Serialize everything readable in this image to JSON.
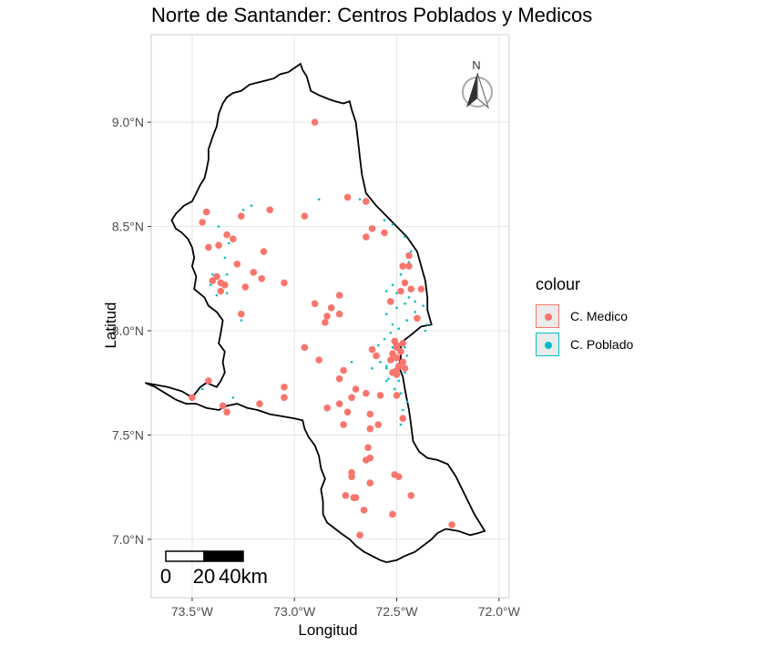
{
  "chart_data": {
    "type": "scatter",
    "title": "Norte de Santander: Centros Poblados y Medicos",
    "xlabel": "Longitud",
    "ylabel": "Latitud",
    "xlim": [
      -73.7,
      -71.95
    ],
    "ylim": [
      6.72,
      9.42
    ],
    "x_ticks": [
      {
        "value": -73.5,
        "label": "73.5°W"
      },
      {
        "value": -73.0,
        "label": "73.0°W"
      },
      {
        "value": -72.5,
        "label": "72.5°W"
      },
      {
        "value": -72.0,
        "label": "72.0°W"
      }
    ],
    "y_ticks": [
      {
        "value": 7.0,
        "label": "7.0°N"
      },
      {
        "value": 7.5,
        "label": "7.5°N"
      },
      {
        "value": 8.0,
        "label": "8.0°N"
      },
      {
        "value": 8.5,
        "label": "8.5°N"
      },
      {
        "value": 9.0,
        "label": "9.0°N"
      }
    ],
    "grid": true,
    "legend": {
      "title": "colour",
      "position": "right",
      "entries": [
        {
          "label": "C. Medico",
          "color": "#F8766D"
        },
        {
          "label": "C. Poblado",
          "color": "#00BFC4"
        }
      ]
    },
    "boundary": [
      [
        -73.73,
        7.75
      ],
      [
        -73.62,
        7.73
      ],
      [
        -73.55,
        7.71
      ],
      [
        -73.5,
        7.68
      ],
      [
        -73.46,
        7.73
      ],
      [
        -73.43,
        7.75
      ],
      [
        -73.38,
        7.73
      ],
      [
        -73.36,
        7.76
      ],
      [
        -73.34,
        7.8
      ],
      [
        -73.35,
        7.85
      ],
      [
        -73.34,
        7.9
      ],
      [
        -73.37,
        7.94
      ],
      [
        -73.36,
        7.99
      ],
      [
        -73.35,
        8.05
      ],
      [
        -73.38,
        8.09
      ],
      [
        -73.42,
        8.12
      ],
      [
        -73.44,
        8.16
      ],
      [
        -73.49,
        8.2
      ],
      [
        -73.48,
        8.26
      ],
      [
        -73.5,
        8.31
      ],
      [
        -73.49,
        8.35
      ],
      [
        -73.5,
        8.4
      ],
      [
        -73.52,
        8.44
      ],
      [
        -73.55,
        8.47
      ],
      [
        -73.58,
        8.49
      ],
      [
        -73.6,
        8.53
      ],
      [
        -73.58,
        8.56
      ],
      [
        -73.54,
        8.6
      ],
      [
        -73.5,
        8.62
      ],
      [
        -73.48,
        8.66
      ],
      [
        -73.46,
        8.7
      ],
      [
        -73.44,
        8.73
      ],
      [
        -73.43,
        8.77
      ],
      [
        -73.42,
        8.82
      ],
      [
        -73.42,
        8.87
      ],
      [
        -73.4,
        8.93
      ],
      [
        -73.38,
        8.98
      ],
      [
        -73.37,
        9.04
      ],
      [
        -73.35,
        9.09
      ],
      [
        -73.33,
        9.12
      ],
      [
        -73.3,
        9.14
      ],
      [
        -73.26,
        9.15
      ],
      [
        -73.22,
        9.18
      ],
      [
        -73.18,
        9.19
      ],
      [
        -73.14,
        9.2
      ],
      [
        -73.1,
        9.21
      ],
      [
        -73.07,
        9.23
      ],
      [
        -73.03,
        9.24
      ],
      [
        -73.0,
        9.26
      ],
      [
        -72.97,
        9.28
      ],
      [
        -72.96,
        9.25
      ],
      [
        -72.94,
        9.22
      ],
      [
        -72.92,
        9.15
      ],
      [
        -72.88,
        9.13
      ],
      [
        -72.83,
        9.11
      ],
      [
        -72.8,
        9.1
      ],
      [
        -72.76,
        9.09
      ],
      [
        -72.73,
        9.1
      ],
      [
        -72.72,
        9.06
      ],
      [
        -72.7,
        9.0
      ],
      [
        -72.69,
        8.92
      ],
      [
        -72.68,
        8.83
      ],
      [
        -72.67,
        8.75
      ],
      [
        -72.65,
        8.66
      ],
      [
        -72.6,
        8.6
      ],
      [
        -72.55,
        8.55
      ],
      [
        -72.5,
        8.5
      ],
      [
        -72.45,
        8.45
      ],
      [
        -72.4,
        8.38
      ],
      [
        -72.38,
        8.31
      ],
      [
        -72.36,
        8.24
      ],
      [
        -72.35,
        8.16
      ],
      [
        -72.35,
        8.1
      ],
      [
        -72.33,
        8.03
      ],
      [
        -72.38,
        8.02
      ],
      [
        -72.43,
        7.98
      ],
      [
        -72.47,
        7.95
      ],
      [
        -72.48,
        7.92
      ],
      [
        -72.48,
        7.87
      ],
      [
        -72.49,
        7.83
      ],
      [
        -72.47,
        7.78
      ],
      [
        -72.46,
        7.72
      ],
      [
        -72.45,
        7.67
      ],
      [
        -72.44,
        7.62
      ],
      [
        -72.43,
        7.55
      ],
      [
        -72.42,
        7.47
      ],
      [
        -72.39,
        7.42
      ],
      [
        -72.35,
        7.39
      ],
      [
        -72.3,
        7.38
      ],
      [
        -72.25,
        7.36
      ],
      [
        -72.21,
        7.3
      ],
      [
        -72.17,
        7.22
      ],
      [
        -72.12,
        7.12
      ],
      [
        -72.07,
        7.04
      ],
      [
        -72.1,
        7.03
      ],
      [
        -72.14,
        7.02
      ],
      [
        -72.2,
        7.04
      ],
      [
        -72.26,
        7.05
      ],
      [
        -72.3,
        7.03
      ],
      [
        -72.33,
        7.0
      ],
      [
        -72.37,
        6.97
      ],
      [
        -72.41,
        6.94
      ],
      [
        -72.46,
        6.92
      ],
      [
        -72.5,
        6.9
      ],
      [
        -72.55,
        6.89
      ],
      [
        -72.58,
        6.9
      ],
      [
        -72.62,
        6.92
      ],
      [
        -72.66,
        6.94
      ],
      [
        -72.7,
        6.97
      ],
      [
        -72.73,
        7.0
      ],
      [
        -72.76,
        7.02
      ],
      [
        -72.8,
        7.05
      ],
      [
        -72.84,
        7.08
      ],
      [
        -72.86,
        7.12
      ],
      [
        -72.86,
        7.18
      ],
      [
        -72.87,
        7.24
      ],
      [
        -72.85,
        7.29
      ],
      [
        -72.87,
        7.34
      ],
      [
        -72.88,
        7.4
      ],
      [
        -72.9,
        7.45
      ],
      [
        -72.93,
        7.49
      ],
      [
        -72.95,
        7.53
      ],
      [
        -72.96,
        7.57
      ],
      [
        -73.0,
        7.58
      ],
      [
        -73.06,
        7.59
      ],
      [
        -73.12,
        7.6
      ],
      [
        -73.18,
        7.62
      ],
      [
        -73.23,
        7.63
      ],
      [
        -73.28,
        7.65
      ],
      [
        -73.33,
        7.64
      ],
      [
        -73.37,
        7.62
      ],
      [
        -73.43,
        7.63
      ],
      [
        -73.48,
        7.65
      ],
      [
        -73.53,
        7.65
      ],
      [
        -73.58,
        7.67
      ],
      [
        -73.63,
        7.7
      ],
      [
        -73.68,
        7.73
      ],
      [
        -73.73,
        7.75
      ]
    ],
    "series": [
      {
        "name": "C. Medico",
        "color": "#F8766D",
        "points": [
          [
            -72.9,
            9.0
          ],
          [
            -73.43,
            8.57
          ],
          [
            -73.45,
            8.52
          ],
          [
            -73.12,
            8.58
          ],
          [
            -73.26,
            8.55
          ],
          [
            -72.95,
            8.55
          ],
          [
            -72.74,
            8.64
          ],
          [
            -72.65,
            8.62
          ],
          [
            -73.42,
            8.4
          ],
          [
            -73.33,
            8.46
          ],
          [
            -73.37,
            8.41
          ],
          [
            -73.3,
            8.44
          ],
          [
            -72.62,
            8.49
          ],
          [
            -72.56,
            8.47
          ],
          [
            -72.65,
            8.45
          ],
          [
            -73.15,
            8.38
          ],
          [
            -73.38,
            8.26
          ],
          [
            -73.4,
            8.24
          ],
          [
            -73.36,
            8.23
          ],
          [
            -73.34,
            8.22
          ],
          [
            -73.36,
            8.19
          ],
          [
            -73.28,
            8.32
          ],
          [
            -73.2,
            8.28
          ],
          [
            -73.16,
            8.25
          ],
          [
            -73.24,
            8.21
          ],
          [
            -73.05,
            8.23
          ],
          [
            -72.44,
            8.36
          ],
          [
            -72.47,
            8.31
          ],
          [
            -72.44,
            8.31
          ],
          [
            -72.46,
            8.23
          ],
          [
            -72.43,
            8.2
          ],
          [
            -72.48,
            8.19
          ],
          [
            -72.53,
            8.14
          ],
          [
            -72.38,
            8.2
          ],
          [
            -72.4,
            8.06
          ],
          [
            -72.9,
            8.13
          ],
          [
            -72.78,
            8.17
          ],
          [
            -72.82,
            8.11
          ],
          [
            -72.84,
            8.07
          ],
          [
            -72.85,
            8.04
          ],
          [
            -72.78,
            8.08
          ],
          [
            -73.26,
            8.08
          ],
          [
            -72.95,
            7.92
          ],
          [
            -72.88,
            7.86
          ],
          [
            -72.76,
            7.81
          ],
          [
            -72.62,
            7.91
          ],
          [
            -72.6,
            7.88
          ],
          [
            -72.5,
            7.92
          ],
          [
            -72.48,
            7.9
          ],
          [
            -72.52,
            7.89
          ],
          [
            -72.5,
            7.87
          ],
          [
            -72.47,
            7.85
          ],
          [
            -72.53,
            7.86
          ],
          [
            -72.49,
            7.83
          ],
          [
            -72.5,
            7.81
          ],
          [
            -72.46,
            7.82
          ],
          [
            -72.52,
            7.8
          ],
          [
            -72.5,
            7.93
          ],
          [
            -72.51,
            7.95
          ],
          [
            -72.47,
            7.94
          ],
          [
            -72.5,
            7.79
          ],
          [
            -73.42,
            7.76
          ],
          [
            -72.78,
            7.77
          ],
          [
            -72.7,
            7.72
          ],
          [
            -73.05,
            7.73
          ],
          [
            -73.05,
            7.68
          ],
          [
            -73.17,
            7.65
          ],
          [
            -73.5,
            7.68
          ],
          [
            -73.35,
            7.64
          ],
          [
            -73.33,
            7.61
          ],
          [
            -72.84,
            7.63
          ],
          [
            -72.78,
            7.65
          ],
          [
            -72.72,
            7.68
          ],
          [
            -72.65,
            7.7
          ],
          [
            -72.58,
            7.69
          ],
          [
            -72.5,
            7.69
          ],
          [
            -72.47,
            7.58
          ],
          [
            -72.63,
            7.6
          ],
          [
            -72.74,
            7.61
          ],
          [
            -72.59,
            7.55
          ],
          [
            -72.76,
            7.55
          ],
          [
            -72.63,
            7.53
          ],
          [
            -72.64,
            7.44
          ],
          [
            -72.63,
            7.39
          ],
          [
            -72.65,
            7.38
          ],
          [
            -72.72,
            7.32
          ],
          [
            -72.72,
            7.3
          ],
          [
            -72.63,
            7.27
          ],
          [
            -72.51,
            7.31
          ],
          [
            -72.49,
            7.3
          ],
          [
            -72.75,
            7.21
          ],
          [
            -72.71,
            7.2
          ],
          [
            -72.7,
            7.2
          ],
          [
            -72.66,
            7.14
          ],
          [
            -72.43,
            7.21
          ],
          [
            -72.52,
            7.12
          ],
          [
            -72.68,
            7.02
          ],
          [
            -72.23,
            7.07
          ]
        ]
      },
      {
        "name": "C. Poblado",
        "color": "#00BFC4",
        "points": [
          [
            -73.25,
            8.58
          ],
          [
            -73.21,
            8.6
          ],
          [
            -72.88,
            8.63
          ],
          [
            -72.68,
            8.63
          ],
          [
            -72.56,
            8.53
          ],
          [
            -72.52,
            8.51
          ],
          [
            -72.46,
            8.45
          ],
          [
            -72.43,
            8.38
          ],
          [
            -72.44,
            8.33
          ],
          [
            -72.48,
            8.27
          ],
          [
            -72.52,
            8.22
          ],
          [
            -72.55,
            8.19
          ],
          [
            -72.5,
            8.18
          ],
          [
            -72.44,
            8.16
          ],
          [
            -72.41,
            8.14
          ],
          [
            -72.46,
            8.13
          ],
          [
            -72.5,
            8.11
          ],
          [
            -72.55,
            8.08
          ],
          [
            -72.52,
            8.03
          ],
          [
            -72.49,
            8.01
          ],
          [
            -72.45,
            8.05
          ],
          [
            -72.41,
            8.09
          ],
          [
            -72.37,
            8.12
          ],
          [
            -72.35,
            8.03
          ],
          [
            -72.36,
            8.0
          ],
          [
            -72.53,
            7.99
          ],
          [
            -72.56,
            7.96
          ],
          [
            -72.59,
            7.93
          ],
          [
            -72.58,
            7.85
          ],
          [
            -72.55,
            7.83
          ],
          [
            -72.54,
            7.77
          ],
          [
            -72.49,
            7.76
          ],
          [
            -72.51,
            7.72
          ],
          [
            -72.48,
            7.7
          ],
          [
            -72.45,
            7.66
          ],
          [
            -72.47,
            7.62
          ],
          [
            -72.48,
            7.55
          ],
          [
            -73.4,
            8.27
          ],
          [
            -73.41,
            8.22
          ],
          [
            -73.38,
            8.17
          ],
          [
            -73.33,
            8.18
          ],
          [
            -73.33,
            8.27
          ],
          [
            -73.34,
            8.35
          ],
          [
            -73.32,
            8.42
          ],
          [
            -73.37,
            8.5
          ],
          [
            -73.26,
            8.05
          ],
          [
            -73.3,
            7.68
          ],
          [
            -73.45,
            7.72
          ],
          [
            -72.72,
            7.85
          ],
          [
            -72.62,
            7.82
          ],
          [
            -72.55,
            7.82
          ],
          [
            -72.55,
            7.76
          ],
          [
            -72.46,
            7.8
          ],
          [
            -72.45,
            7.88
          ],
          [
            -72.46,
            7.92
          ],
          [
            -72.52,
            7.92
          ]
        ]
      }
    ]
  },
  "map": {
    "north_label": "N",
    "scale_bar": {
      "labels": [
        "0",
        "20",
        "40km"
      ]
    }
  }
}
